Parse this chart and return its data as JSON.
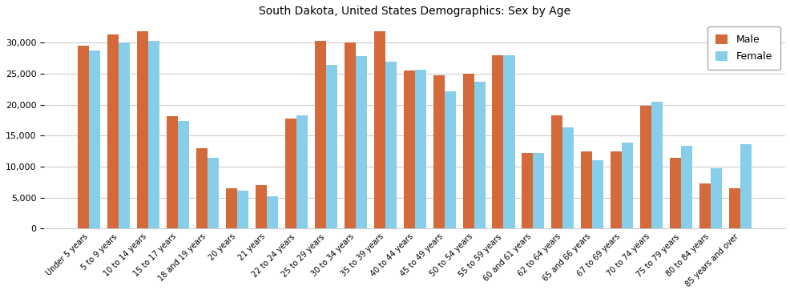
{
  "title": "South Dakota, United States Demographics: Sex by Age",
  "categories": [
    "Under 5 years",
    "5 to 9 years",
    "10 to 14 years",
    "15 to 17 years",
    "18 and 19 years",
    "20 years",
    "21 years",
    "22 to 24 years",
    "25 to 29 years",
    "30 to 34 years",
    "35 to 39 years",
    "40 to 44 years",
    "45 to 49 years",
    "50 to 54 years",
    "55 to 59 years",
    "60 and 61 years",
    "62 to 64 years",
    "65 and 66 years",
    "67 to 69 years",
    "70 to 74 years",
    "75 to 79 years",
    "80 to 84 years",
    "85 years and over"
  ],
  "male": [
    29500,
    31300,
    31800,
    18200,
    13000,
    6500,
    7000,
    17800,
    30300,
    30100,
    31900,
    25500,
    24700,
    25000,
    28000,
    12200,
    18300,
    12500,
    12500,
    19800,
    11400,
    7300,
    6500
  ],
  "female": [
    28700,
    30000,
    30300,
    17400,
    11400,
    6100,
    5200,
    18300,
    26400,
    27900,
    27000,
    25600,
    22200,
    23700,
    28000,
    12200,
    16400,
    11100,
    13900,
    20500,
    13400,
    9800,
    13600
  ],
  "male_color": "#d4693a",
  "female_color": "#87ceeb",
  "bar_width": 0.38,
  "ylim": [
    0,
    33500
  ],
  "yticks": [
    0,
    5000,
    10000,
    15000,
    20000,
    25000,
    30000
  ],
  "legend_labels": [
    "Male",
    "Female"
  ],
  "figsize": [
    9.87,
    3.67
  ],
  "dpi": 100,
  "title_fontsize": 10,
  "tick_fontsize": 7,
  "ytick_fontsize": 8
}
